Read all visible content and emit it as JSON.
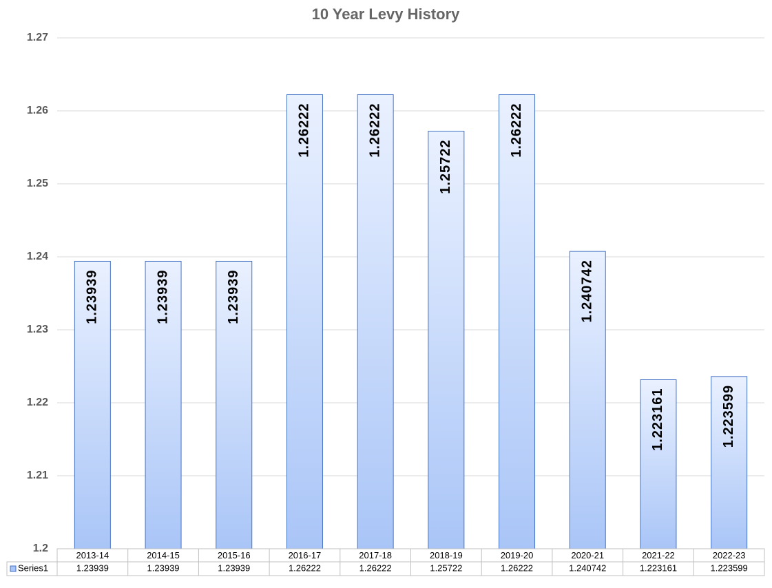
{
  "chart_data": {
    "type": "bar",
    "title": "10 Year Levy History",
    "categories": [
      "2013-14",
      "2014-15",
      "2015-16",
      "2016-17",
      "2017-18",
      "2018-19",
      "2019-20",
      "2020-21",
      "2021-22",
      "2022-23"
    ],
    "series": [
      {
        "name": "Series1",
        "color": "#a9c5f7",
        "values": [
          1.23939,
          1.23939,
          1.23939,
          1.26222,
          1.26222,
          1.25722,
          1.26222,
          1.240742,
          1.223161,
          1.223599
        ]
      }
    ],
    "ylim": [
      1.2,
      1.27
    ],
    "yticks": [
      1.2,
      1.21,
      1.22,
      1.23,
      1.24,
      1.25,
      1.26,
      1.27
    ],
    "grid": true,
    "data_table": true
  }
}
